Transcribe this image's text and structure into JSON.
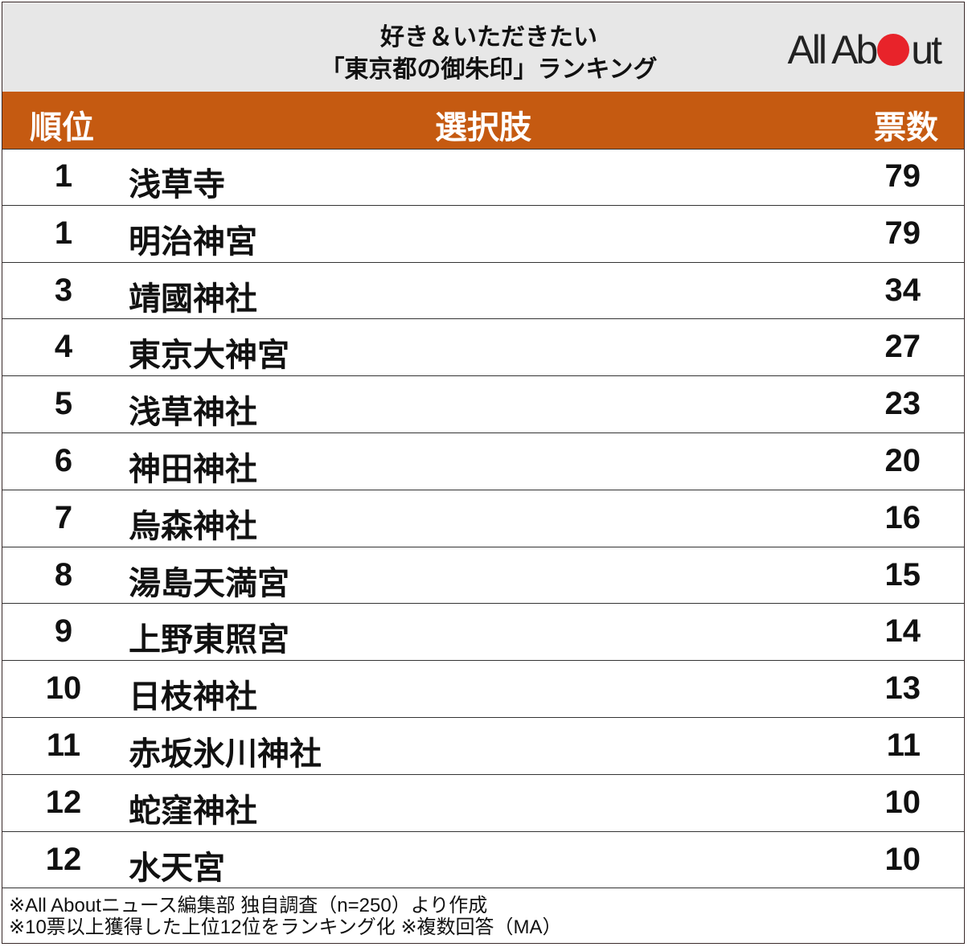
{
  "title_line1": "好き＆いただきたい",
  "title_line2": "「東京都の御朱印」ランキング",
  "logo": "All About",
  "colors": {
    "header_bg": "#c55a11",
    "title_bg": "#e7e7e7",
    "logo_dot": "#e8232a"
  },
  "chart_data": {
    "type": "table",
    "columns": [
      "順位",
      "選択肢",
      "票数"
    ],
    "rows": [
      {
        "rank": "1",
        "name": "浅草寺",
        "votes": "79"
      },
      {
        "rank": "1",
        "name": "明治神宮",
        "votes": "79"
      },
      {
        "rank": "3",
        "name": "靖國神社",
        "votes": "34"
      },
      {
        "rank": "4",
        "name": "東京大神宮",
        "votes": "27"
      },
      {
        "rank": "5",
        "name": "浅草神社",
        "votes": "23"
      },
      {
        "rank": "6",
        "name": "神田神社",
        "votes": "20"
      },
      {
        "rank": "7",
        "name": "烏森神社",
        "votes": "16"
      },
      {
        "rank": "8",
        "name": "湯島天満宮",
        "votes": "15"
      },
      {
        "rank": "9",
        "name": "上野東照宮",
        "votes": "14"
      },
      {
        "rank": "10",
        "name": "日枝神社",
        "votes": "13"
      },
      {
        "rank": "11",
        "name": "赤坂氷川神社",
        "votes": "11"
      },
      {
        "rank": "12",
        "name": "蛇窪神社",
        "votes": "10"
      },
      {
        "rank": "12",
        "name": "水天宮",
        "votes": "10"
      }
    ]
  },
  "footnotes": [
    "※All Aboutニュース編集部 独自調査（n=250）より作成",
    "※10票以上獲得した上位12位をランキング化 ※複数回答（MA）"
  ]
}
